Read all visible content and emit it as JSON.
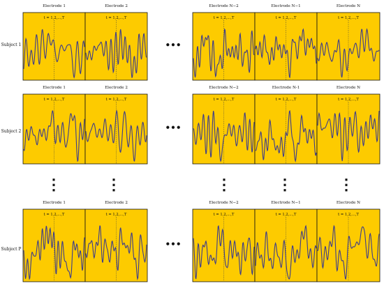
{
  "subjects": [
    {
      "label": "Subject 1",
      "panels": [
        {
          "electrode": "Electrode 1",
          "time": "t = 1,2,...,T"
        },
        {
          "electrode": "Electrode 2",
          "time": "t = 1,2,...,T"
        },
        {
          "electrode": "Electrode N−2",
          "time": "t = 1,2,...,T"
        },
        {
          "electrode": "Electrode N−1",
          "time": "t = 1,2,...,T"
        },
        {
          "electrode": "Electrode N",
          "time": "t = 1,2,...,T"
        }
      ]
    },
    {
      "label": "Subject 2",
      "panels": [
        {
          "electrode": "Electrode 1",
          "time": "t = 1,2,...,T"
        },
        {
          "electrode": "Electrode 2",
          "time": "t = 1,2,...,T"
        },
        {
          "electrode": "Electrode N−2",
          "time": "t = 1,2,...,T"
        },
        {
          "electrode": "Electrode N-1",
          "time": "t = 1,2,...,T"
        },
        {
          "electrode": "Electrode N",
          "time": "t = 1,2,...,T"
        }
      ]
    },
    {
      "label": "Subject P",
      "panels": [
        {
          "electrode": "Electrode 1",
          "time": "t = 1,2,...,T"
        },
        {
          "electrode": "Electrode 2",
          "time": "t = 1,2,...,T"
        },
        {
          "electrode": "Electrode N−2",
          "time": "t = 1,2,...,T"
        },
        {
          "electrode": "Electrode N−1",
          "time": "t = 1,2,...,T"
        },
        {
          "electrode": "Electrode N",
          "time": "t = 1,2,...,T"
        }
      ]
    }
  ],
  "ellipsis_h": "•••",
  "ellipsis_v": "⋮",
  "colors": {
    "panel_fill": "#FDCB00",
    "signal": "#3C3C8C",
    "border": "#111111"
  }
}
